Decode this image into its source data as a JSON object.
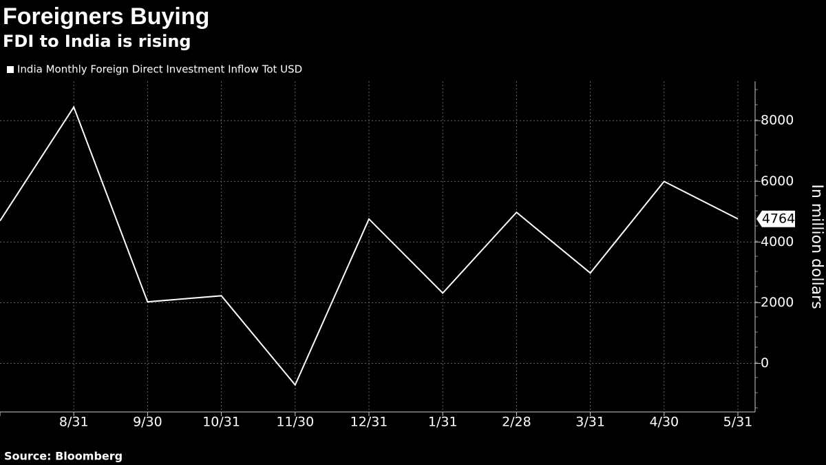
{
  "chart_data": {
    "type": "line",
    "title": "Foreigners Buying",
    "subtitle": "FDI to India is rising",
    "y_label": "In million dollars",
    "source": "Source: Bloomberg",
    "categories": [
      null,
      "8/31",
      "9/30",
      "10/31",
      "11/30",
      "12/31",
      "1/31",
      "2/28",
      "3/31",
      "4/30",
      "5/31"
    ],
    "series": [
      {
        "name": "India Monthly Foreign Direct Investment Inflow Tot USD",
        "color": "#ffffff",
        "values": [
          4700,
          8450,
          2030,
          2230,
          -710,
          4760,
          2320,
          4980,
          2980,
          6000,
          4764
        ]
      }
    ],
    "ylim": [
      -1600,
      9300
    ],
    "yticks": [
      0,
      2000,
      4000,
      6000,
      8000
    ],
    "grid": true
  }
}
